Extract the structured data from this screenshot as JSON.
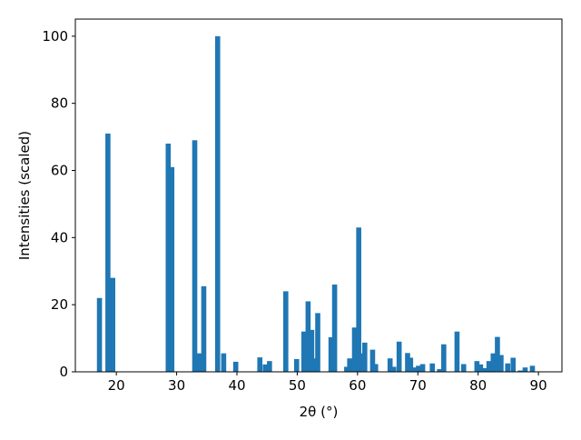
{
  "chart_data": {
    "type": "bar",
    "x_label": "2θ (°)",
    "y_label": "Intensities (scaled)",
    "color": "#1f77b4",
    "x": [
      17.2,
      18.6,
      19.4,
      28.6,
      29.2,
      33.0,
      33.7,
      34.5,
      36.8,
      37.8,
      39.8,
      43.8,
      44.7,
      45.4,
      48.1,
      49.9,
      51.1,
      51.8,
      52.4,
      52.9,
      53.4,
      55.6,
      56.2,
      58.2,
      58.7,
      59.5,
      60.2,
      60.6,
      61.2,
      62.5,
      63.0,
      65.4,
      66.0,
      66.9,
      68.3,
      68.8,
      69.6,
      70.1,
      70.8,
      72.4,
      73.6,
      74.3,
      76.5,
      77.6,
      79.8,
      80.4,
      81.0,
      81.8,
      82.5,
      83.2,
      83.8,
      84.9,
      85.8,
      87.0,
      87.8,
      89.0
    ],
    "values": [
      22,
      71,
      28,
      68,
      61,
      69,
      5.5,
      25.5,
      100,
      5.5,
      3,
      4.3,
      2.2,
      3.2,
      24,
      3.8,
      12,
      21,
      12.5,
      4,
      17.5,
      10.3,
      26,
      1.5,
      4,
      13.2,
      43,
      5.5,
      8.7,
      6.6,
      2.3,
      4,
      1.5,
      9,
      5.6,
      4.2,
      1.3,
      1.8,
      2.3,
      2.5,
      0.8,
      8.2,
      12,
      2.3,
      3.2,
      2.2,
      1.1,
      3.2,
      5.5,
      10.4,
      5,
      2.5,
      4.2,
      0.4,
      1.3,
      1.8
    ],
    "xlim": [
      13.2,
      93.9
    ],
    "ylim": [
      0,
      105.1
    ],
    "xticks": [
      20,
      30,
      40,
      50,
      60,
      70,
      80,
      90
    ],
    "yticks": [
      0,
      20,
      40,
      60,
      80,
      100
    ]
  }
}
